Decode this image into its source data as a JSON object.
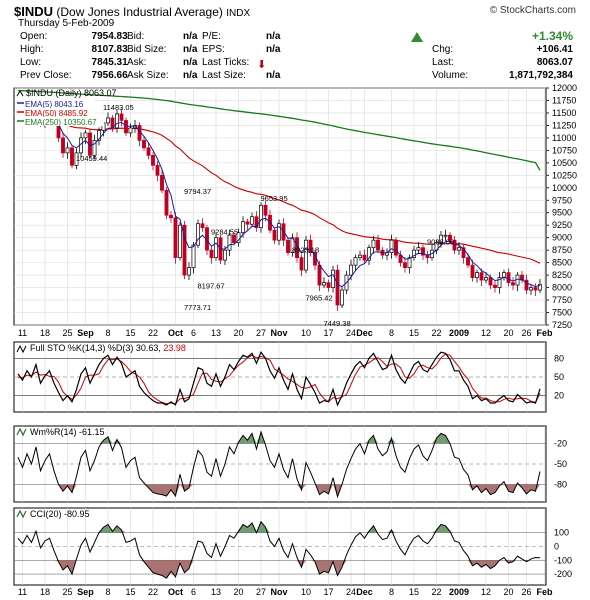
{
  "header": {
    "symbol": "$INDU",
    "name": "(Dow Jones Industrial Average)",
    "exchange": "INDX",
    "brand": "© StockCharts.com",
    "date": "Thursday  5-Feb-2009"
  },
  "quote": {
    "open_label": "Open:",
    "open": "7954.83",
    "high_label": "High:",
    "high": "8107.83",
    "low_label": "Low:",
    "low": "7845.31",
    "prev_label": "Prev Close:",
    "prev": "7956.66",
    "bid_label": "Bid:",
    "bid": "n/a",
    "bidsize_label": "Bid Size:",
    "bidsize": "n/a",
    "ask_label": "Ask:",
    "ask": "n/a",
    "asksize_label": "Ask Size:",
    "asksize": "n/a",
    "pe_label": "P/E:",
    "pe": "n/a",
    "eps_label": "EPS:",
    "eps": "n/a",
    "ticks_label": "Last Ticks:",
    "lastsize_label": "Last Size:",
    "lastsize": "n/a",
    "pct_change": "+1.34%",
    "chg_label": "Chg:",
    "chg": "+106.41",
    "last_label": "Last:",
    "last": "8063.07",
    "vol_label": "Volume:",
    "volume": "1,871,792,384",
    "up_color": "#2e8b2e",
    "down_color": "#b00000"
  },
  "chart_data": [
    {
      "type": "candlestick",
      "legend": [
        {
          "label": "$INDU (Daily) 8063.07",
          "color": "#000000"
        },
        {
          "label": "EMA(5) 8043.16",
          "color": "#1a1a9a"
        },
        {
          "label": "EMA(50) 8485.92",
          "color": "#cc0000"
        },
        {
          "label": "EMA(250) 10350.67",
          "color": "#1a7a1a"
        }
      ],
      "ylim": [
        7250,
        12000
      ],
      "yticks": [
        7250,
        7500,
        7750,
        8000,
        8250,
        8500,
        8750,
        9000,
        9250,
        9500,
        9750,
        10000,
        10250,
        10500,
        10750,
        11000,
        11250,
        11500,
        11750,
        12000
      ],
      "annotations": [
        {
          "text": "11483.05",
          "x": 22,
          "y": 11483
        },
        {
          "text": "10459.44",
          "x": 16,
          "y": 10459
        },
        {
          "text": "9794.37",
          "x": 40,
          "y": 9794
        },
        {
          "text": "9284.55",
          "x": 46,
          "y": 9284
        },
        {
          "text": "9653.95",
          "x": 57,
          "y": 9654
        },
        {
          "text": "8923.18",
          "x": 64,
          "y": 8923
        },
        {
          "text": "8197.67",
          "x": 43,
          "y": 8198
        },
        {
          "text": "7773.71",
          "x": 40,
          "y": 7774
        },
        {
          "text": "7965.42",
          "x": 67,
          "y": 7965
        },
        {
          "text": "7449.38",
          "x": 71,
          "y": 7449
        },
        {
          "text": "9088.06",
          "x": 94,
          "y": 9088
        }
      ],
      "close": [
        11450,
        11350,
        11550,
        11400,
        11650,
        11300,
        11450,
        11550,
        11300,
        11000,
        10700,
        10800,
        10450,
        10700,
        11000,
        11100,
        10650,
        10950,
        11150,
        11300,
        11400,
        11200,
        11480,
        11350,
        11100,
        11200,
        11250,
        10950,
        10800,
        10650,
        10450,
        10250,
        9950,
        9450,
        9400,
        8600,
        9250,
        8250,
        8400,
        8850,
        9280,
        9200,
        8750,
        8600,
        9000,
        8550,
        8750,
        9050,
        8900,
        9100,
        9320,
        9270,
        9420,
        9200,
        9650,
        9450,
        9150,
        8950,
        9280,
        8950,
        8700,
        9000,
        8600,
        8350,
        8950,
        8700,
        8450,
        8050,
        8100,
        8000,
        8350,
        7650,
        7950,
        8250,
        8450,
        8600,
        8650,
        8550,
        8800,
        8950,
        8750,
        8650,
        8700,
        8950,
        8650,
        8500,
        8400,
        8600,
        8750,
        8800,
        8650,
        8600,
        8750,
        8900,
        9050,
        9050,
        8950,
        8750,
        8800,
        8600,
        8450,
        8200,
        8300,
        8150,
        8200,
        8050,
        8000,
        8200,
        8300,
        8100,
        8050,
        8250,
        8150,
        7950,
        8000,
        7950,
        8063
      ],
      "ema5": [
        11350,
        11380,
        11420,
        11410,
        11460,
        11420,
        11430,
        11470,
        11410,
        11280,
        11090,
        11000,
        10850,
        10800,
        10880,
        10950,
        10850,
        10880,
        10980,
        11090,
        11190,
        11200,
        11290,
        11310,
        11240,
        11230,
        11240,
        11140,
        11030,
        10900,
        10750,
        10580,
        10370,
        10070,
        9850,
        9430,
        9370,
        9000,
        8800,
        8820,
        8970,
        9050,
        8950,
        8830,
        8890,
        8780,
        8770,
        8860,
        8870,
        8950,
        9070,
        9140,
        9230,
        9220,
        9360,
        9390,
        9310,
        9190,
        9220,
        9130,
        8990,
        8990,
        8860,
        8690,
        8780,
        8750,
        8650,
        8450,
        8330,
        8220,
        8260,
        8060,
        8020,
        8100,
        8210,
        8340,
        8440,
        8480,
        8590,
        8710,
        8720,
        8700,
        8700,
        8780,
        8740,
        8660,
        8570,
        8580,
        8640,
        8690,
        8680,
        8650,
        8680,
        8750,
        8850,
        8920,
        8930,
        8870,
        8850,
        8770,
        8660,
        8510,
        8440,
        8340,
        8290,
        8210,
        8140,
        8160,
        8210,
        8170,
        8130,
        8170,
        8160,
        8090,
        8060,
        8020,
        8043
      ],
      "ema50": [
        11250,
        11260,
        11270,
        11275,
        11290,
        11290,
        11295,
        11305,
        11305,
        11295,
        11270,
        11255,
        11225,
        11205,
        11200,
        11195,
        11175,
        11165,
        11165,
        11170,
        11180,
        11180,
        11190,
        11195,
        11190,
        11190,
        11190,
        11180,
        11165,
        11145,
        11120,
        11090,
        11050,
        10990,
        10930,
        10840,
        10780,
        10690,
        10600,
        10540,
        10490,
        10440,
        10370,
        10300,
        10250,
        10180,
        10120,
        10080,
        10030,
        9990,
        9960,
        9930,
        9910,
        9880,
        9870,
        9850,
        9820,
        9780,
        9760,
        9720,
        9680,
        9650,
        9600,
        9550,
        9530,
        9500,
        9460,
        9400,
        9350,
        9300,
        9260,
        9190,
        9140,
        9100,
        9080,
        9060,
        9040,
        9020,
        9010,
        9000,
        8990,
        8970,
        8960,
        8960,
        8950,
        8930,
        8910,
        8900,
        8890,
        8890,
        8880,
        8870,
        8870,
        8870,
        8880,
        8880,
        8880,
        8880,
        8880,
        8870,
        8850,
        8830,
        8810,
        8790,
        8770,
        8750,
        8720,
        8700,
        8690,
        8670,
        8650,
        8630,
        8610,
        8590,
        8570,
        8530,
        8486
      ],
      "ema250": [
        11950,
        11945,
        11940,
        11936,
        11932,
        11927,
        11922,
        11918,
        11913,
        11908,
        11902,
        11896,
        11890,
        11884,
        11878,
        11873,
        11866,
        11860,
        11855,
        11850,
        11845,
        11839,
        11834,
        11829,
        11823,
        11817,
        11811,
        11804,
        11797,
        11789,
        11780,
        11770,
        11760,
        11747,
        11735,
        11718,
        11704,
        11688,
        11672,
        11660,
        11648,
        11636,
        11622,
        11609,
        11597,
        11583,
        11570,
        11559,
        11546,
        11535,
        11525,
        11513,
        11503,
        11491,
        11482,
        11471,
        11458,
        11445,
        11433,
        11419,
        11405,
        11392,
        11376,
        11359,
        11346,
        11331,
        11315,
        11296,
        11277,
        11258,
        11240,
        11218,
        11198,
        11179,
        11161,
        11144,
        11128,
        11111,
        11096,
        11081,
        11065,
        11049,
        11034,
        11020,
        11005,
        10988,
        10971,
        10956,
        10941,
        10927,
        10911,
        10896,
        10881,
        10868,
        10856,
        10844,
        10831,
        10818,
        10805,
        10790,
        10774,
        10756,
        10739,
        10721,
        10704,
        10686,
        10667,
        10650,
        10633,
        10614,
        10596,
        10579,
        10561,
        10542,
        10523,
        10504,
        10351
      ]
    },
    {
      "type": "line",
      "legend": [
        {
          "label": "Full STO %K(14,3) %D(3) 30.63,",
          "color": "#000000"
        },
        {
          "label": "23.98",
          "color": "#cc0000"
        }
      ],
      "ylim": [
        0,
        100
      ],
      "yticks": [
        20,
        50,
        80
      ],
      "k": [
        55,
        45,
        60,
        50,
        70,
        40,
        52,
        60,
        40,
        25,
        12,
        20,
        10,
        30,
        55,
        65,
        40,
        55,
        70,
        80,
        85,
        70,
        82,
        72,
        50,
        55,
        60,
        35,
        25,
        18,
        12,
        8,
        8,
        5,
        10,
        5,
        30,
        10,
        15,
        40,
        65,
        62,
        40,
        35,
        55,
        35,
        50,
        70,
        62,
        75,
        85,
        82,
        88,
        72,
        90,
        80,
        60,
        48,
        65,
        45,
        30,
        55,
        30,
        15,
        50,
        38,
        25,
        8,
        12,
        10,
        30,
        5,
        20,
        40,
        55,
        68,
        75,
        65,
        80,
        88,
        75,
        62,
        65,
        85,
        62,
        48,
        40,
        55,
        70,
        75,
        62,
        58,
        70,
        82,
        90,
        88,
        78,
        60,
        60,
        45,
        35,
        15,
        20,
        12,
        15,
        8,
        8,
        15,
        20,
        12,
        10,
        22,
        15,
        8,
        10,
        8,
        31
      ],
      "d": [
        50,
        48,
        53,
        52,
        58,
        53,
        54,
        51,
        51,
        42,
        26,
        19,
        14,
        21,
        32,
        50,
        53,
        53,
        55,
        68,
        78,
        78,
        79,
        75,
        68,
        59,
        55,
        50,
        40,
        26,
        18,
        13,
        9,
        7,
        8,
        7,
        15,
        15,
        18,
        22,
        40,
        56,
        56,
        46,
        43,
        42,
        47,
        52,
        61,
        69,
        74,
        81,
        85,
        81,
        83,
        81,
        77,
        63,
        58,
        53,
        47,
        43,
        38,
        33,
        32,
        34,
        38,
        24,
        15,
        10,
        17,
        15,
        18,
        22,
        38,
        54,
        66,
        69,
        73,
        78,
        81,
        75,
        67,
        71,
        71,
        65,
        50,
        48,
        55,
        67,
        69,
        65,
        63,
        70,
        81,
        87,
        85,
        75,
        66,
        55,
        47,
        32,
        23,
        16,
        16,
        12,
        10,
        10,
        14,
        16,
        14,
        15,
        16,
        15,
        11,
        9,
        24
      ]
    },
    {
      "type": "area",
      "legend": [
        {
          "label": "Wm%R(14) -61.15",
          "color": "#000000"
        }
      ],
      "ylim": [
        -100,
        0
      ],
      "yticks": [
        -20,
        -50,
        -80
      ],
      "values": [
        -40,
        -55,
        -35,
        -50,
        -25,
        -60,
        -45,
        -35,
        -60,
        -80,
        -90,
        -82,
        -92,
        -68,
        -40,
        -30,
        -60,
        -45,
        -25,
        -15,
        -10,
        -30,
        -14,
        -26,
        -55,
        -45,
        -40,
        -70,
        -78,
        -85,
        -92,
        -94,
        -95,
        -97,
        -88,
        -97,
        -65,
        -90,
        -85,
        -55,
        -30,
        -38,
        -62,
        -68,
        -42,
        -68,
        -50,
        -25,
        -35,
        -18,
        -8,
        -15,
        -5,
        -28,
        -3,
        -22,
        -45,
        -55,
        -35,
        -58,
        -70,
        -42,
        -72,
        -88,
        -48,
        -62,
        -78,
        -95,
        -90,
        -94,
        -70,
        -98,
        -80,
        -58,
        -42,
        -28,
        -20,
        -35,
        -15,
        -8,
        -28,
        -38,
        -32,
        -12,
        -38,
        -55,
        -62,
        -42,
        -28,
        -22,
        -38,
        -45,
        -30,
        -12,
        -5,
        -8,
        -20,
        -40,
        -42,
        -58,
        -66,
        -88,
        -82,
        -92,
        -86,
        -95,
        -92,
        -82,
        -76,
        -90,
        -92,
        -78,
        -85,
        -94,
        -88,
        -90,
        -61
      ]
    },
    {
      "type": "area",
      "legend": [
        {
          "label": "CCI(20) -80.95",
          "color": "#000000"
        }
      ],
      "ylim": [
        -250,
        250
      ],
      "yticks": [
        100,
        0,
        -100,
        -200
      ],
      "values": [
        60,
        20,
        80,
        30,
        110,
        -10,
        40,
        60,
        -30,
        -110,
        -170,
        -140,
        -200,
        -90,
        10,
        60,
        -40,
        30,
        100,
        140,
        160,
        110,
        150,
        120,
        30,
        40,
        60,
        -60,
        -110,
        -150,
        -190,
        -200,
        -210,
        -230,
        -180,
        -220,
        -120,
        -190,
        -160,
        -60,
        40,
        30,
        -50,
        -80,
        20,
        -70,
        0,
        80,
        60,
        110,
        160,
        140,
        170,
        100,
        180,
        140,
        40,
        0,
        60,
        -30,
        -80,
        20,
        -80,
        -150,
        -20,
        -60,
        -110,
        -200,
        -180,
        -190,
        -110,
        -210,
        -150,
        -60,
        10,
        70,
        100,
        60,
        110,
        150,
        90,
        50,
        60,
        120,
        40,
        -20,
        -60,
        10,
        60,
        80,
        40,
        20,
        60,
        120,
        160,
        150,
        110,
        40,
        30,
        -30,
        -70,
        -140,
        -120,
        -150,
        -130,
        -160,
        -140,
        -100,
        -80,
        -120,
        -110,
        -70,
        -90,
        -110,
        -90,
        -80,
        -81
      ]
    }
  ],
  "x_axis": {
    "labels": [
      {
        "text": "11",
        "x": 1,
        "bold": false
      },
      {
        "text": "18",
        "x": 6,
        "bold": false
      },
      {
        "text": "25",
        "x": 11,
        "bold": false
      },
      {
        "text": "Sep",
        "x": 15,
        "bold": true
      },
      {
        "text": "8",
        "x": 20,
        "bold": false
      },
      {
        "text": "15",
        "x": 25,
        "bold": false
      },
      {
        "text": "22",
        "x": 30,
        "bold": false
      },
      {
        "text": "Oct",
        "x": 35,
        "bold": true
      },
      {
        "text": "6",
        "x": 39,
        "bold": false
      },
      {
        "text": "13",
        "x": 44,
        "bold": false
      },
      {
        "text": "20",
        "x": 49,
        "bold": false
      },
      {
        "text": "27",
        "x": 54,
        "bold": false
      },
      {
        "text": "Nov",
        "x": 58,
        "bold": true
      },
      {
        "text": "10",
        "x": 64,
        "bold": false
      },
      {
        "text": "17",
        "x": 69,
        "bold": false
      },
      {
        "text": "24",
        "x": 74,
        "bold": false
      },
      {
        "text": "Dec",
        "x": 77,
        "bold": true
      },
      {
        "text": "8",
        "x": 83,
        "bold": false
      },
      {
        "text": "15",
        "x": 88,
        "bold": false
      },
      {
        "text": "22",
        "x": 93,
        "bold": false
      },
      {
        "text": "2009",
        "x": 98,
        "bold": true
      },
      {
        "text": "12",
        "x": 104,
        "bold": false
      },
      {
        "text": "20",
        "x": 109,
        "bold": false
      },
      {
        "text": "26",
        "x": 113,
        "bold": false
      },
      {
        "text": "Feb",
        "x": 117,
        "bold": true
      }
    ]
  }
}
